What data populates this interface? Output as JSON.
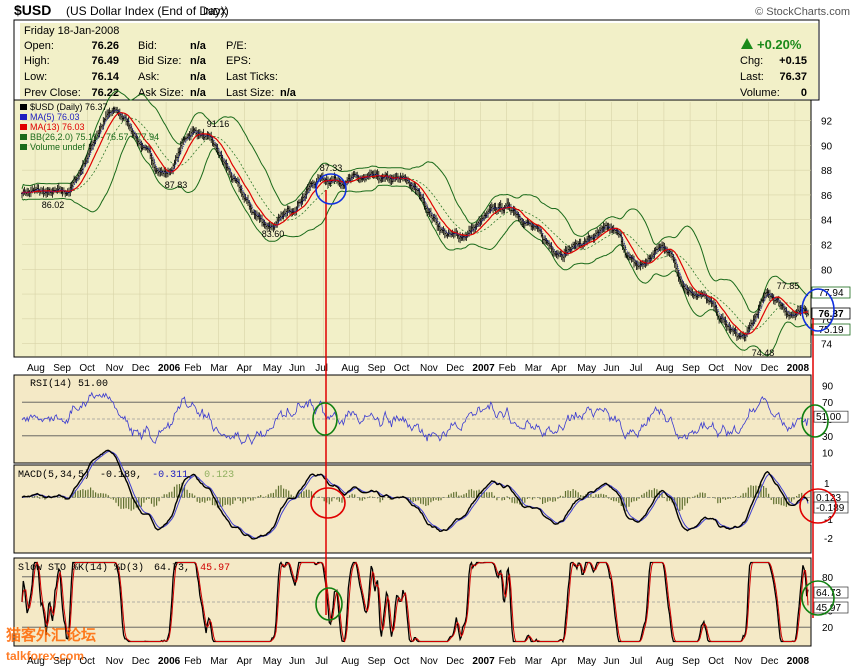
{
  "header": {
    "symbol": "$USD",
    "name": "(US Dollar Index (End of Day))",
    "exchange": "INDX",
    "source": "© StockCharts.com"
  },
  "quote": {
    "date": "Friday  18-Jan-2008",
    "open_label": "Open:",
    "open": "76.26",
    "high_label": "High:",
    "high": "76.49",
    "low_label": "Low:",
    "low": "76.14",
    "prev_close_label": "Prev Close:",
    "prev_close": "76.22",
    "bid_label": "Bid:",
    "bid": "n/a",
    "bid_size_label": "Bid Size:",
    "bid_size": "n/a",
    "ask_label": "Ask:",
    "ask": "n/a",
    "ask_size_label": "Ask Size:",
    "ask_size": "n/a",
    "pe_label": "P/E:",
    "eps_label": "EPS:",
    "last_ticks_label": "Last Ticks:",
    "last_size_label": "Last Size:",
    "last_size": "n/a",
    "change_pct": "+0.20%",
    "chg_label": "Chg:",
    "chg": "+0.15",
    "last_label": "Last:",
    "last": "76.37",
    "volume_label": "Volume:",
    "volume": "0"
  },
  "colors": {
    "price_bg": "#f2f0c8",
    "panel_bg": "#f4e9c6",
    "candle": "#000000",
    "ma5": "#2020c0",
    "ma13": "#e00000",
    "bb": "#1a6a1a",
    "rsi": "#3a3ad0",
    "macd": "#000000",
    "signal": "#4040d0",
    "histogram": "#607030",
    "sto_k": "#000000",
    "sto_d": "#d00000",
    "annotation_line": "#e00000",
    "circle_blue": "#1030e0",
    "circle_green": "#108010",
    "circle_red": "#e00000",
    "watermark": "#ff6600"
  },
  "price_panel": {
    "legend": [
      {
        "text": "$USD (Daily) 76.37",
        "color": "#000000"
      },
      {
        "text": "MA(5) 76.03",
        "color": "#2020c0"
      },
      {
        "text": "MA(13) 76.03",
        "color": "#e00000"
      },
      {
        "text": "BB(26,2.0) 75.19 - 76.57 - 77.94",
        "color": "#1a6a1a"
      },
      {
        "text": "Volume undef",
        "color": "#1a6a1a"
      }
    ],
    "y_ticks": [
      "92",
      "90",
      "88",
      "86",
      "84",
      "82",
      "80",
      "78",
      "76",
      "74"
    ],
    "annotations": [
      "91.16",
      "87.33",
      "86.02",
      "87.83",
      "83.60",
      "77.85",
      "74.48"
    ],
    "right_labels": [
      "77.94",
      "76.37",
      "75.19"
    ]
  },
  "time_axis": {
    "labels": [
      "Aug",
      "Sep",
      "Oct",
      "Nov",
      "Dec",
      "2006",
      "Feb",
      "Mar",
      "Apr",
      "May",
      "Jun",
      "Jul",
      "Aug",
      "Sep",
      "Oct",
      "Nov",
      "Dec",
      "2007",
      "Feb",
      "Mar",
      "Apr",
      "May",
      "Jun",
      "Jul",
      "Aug",
      "Sep",
      "Oct",
      "Nov",
      "Dec",
      "2008"
    ]
  },
  "rsi_panel": {
    "legend": "RSI(14) 51.00",
    "y_ticks": [
      "90",
      "70",
      "50",
      "30",
      "10"
    ],
    "right_label": "51.00"
  },
  "macd_panel": {
    "legend_name": "MACD(5,34,5)",
    "legend_macd": "-0.189,",
    "legend_signal": "-0.311,",
    "legend_hist": "0.123",
    "y_ticks": [
      "1",
      "0",
      "-1",
      "-2"
    ],
    "right_labels": [
      "0.123",
      "-0.189"
    ]
  },
  "sto_panel": {
    "legend_name": "Slow STO %K(14) %D(3)",
    "legend_k": "64.73,",
    "legend_d": "45.97",
    "y_ticks": [
      "80",
      "60",
      "40",
      "20"
    ],
    "right_labels": [
      "64.73",
      "45.97"
    ]
  },
  "watermark": {
    "line1": "猫客外汇论坛",
    "line2": "talkforex.com"
  },
  "chart_data": [
    {
      "type": "line",
      "title": "$USD (Daily)",
      "x": [
        "2005-08",
        "2005-09",
        "2005-10",
        "2005-11",
        "2005-12",
        "2006-01",
        "2006-02",
        "2006-03",
        "2006-04",
        "2006-05",
        "2006-06",
        "2006-07",
        "2006-08",
        "2006-09",
        "2006-10",
        "2006-11",
        "2006-12",
        "2007-01",
        "2007-02",
        "2007-03",
        "2007-04",
        "2007-05",
        "2007-06",
        "2007-07",
        "2007-08",
        "2007-09",
        "2007-10",
        "2007-11",
        "2007-12",
        "2008-01"
      ],
      "ylim": [
        73,
        93.5
      ],
      "key_points": [
        {
          "x": "2005-09",
          "y": 86.02
        },
        {
          "x": "2005-11",
          "y": 92.6
        },
        {
          "x": "2006-01",
          "y": 87.83
        },
        {
          "x": "2006-02",
          "y": 91.16
        },
        {
          "x": "2006-05",
          "y": 83.6
        },
        {
          "x": "2006-07",
          "y": 87.33
        },
        {
          "x": "2006-10",
          "y": 87.1
        },
        {
          "x": "2006-12",
          "y": 82.6
        },
        {
          "x": "2007-02",
          "y": 85.0
        },
        {
          "x": "2007-04",
          "y": 81.6
        },
        {
          "x": "2007-06",
          "y": 83.0
        },
        {
          "x": "2007-07",
          "y": 80.2
        },
        {
          "x": "2007-08",
          "y": 81.8
        },
        {
          "x": "2007-09",
          "y": 78.4
        },
        {
          "x": "2007-11",
          "y": 74.48
        },
        {
          "x": "2007-12",
          "y": 77.85
        },
        {
          "x": "2008-01",
          "y": 76.37
        }
      ],
      "series": [
        {
          "name": "MA(5)",
          "last": 76.03
        },
        {
          "name": "MA(13)",
          "last": 76.03
        },
        {
          "name": "BB(26,2.0)",
          "lower": 75.19,
          "middle": 76.57,
          "upper": 77.94
        }
      ]
    },
    {
      "type": "line",
      "title": "RSI(14)",
      "ylim": [
        0,
        100
      ],
      "last": 51.0,
      "ref_lines": [
        70,
        30
      ]
    },
    {
      "type": "line",
      "title": "MACD(5,34,5)",
      "ylim": [
        -2.8,
        1.6
      ],
      "macd": -0.189,
      "signal": -0.311,
      "histogram": 0.123
    },
    {
      "type": "line",
      "title": "Slow STO %K(14) %D(3)",
      "ylim": [
        0,
        100
      ],
      "k": 64.73,
      "d": 45.97,
      "ref_lines": [
        80,
        20
      ]
    }
  ]
}
